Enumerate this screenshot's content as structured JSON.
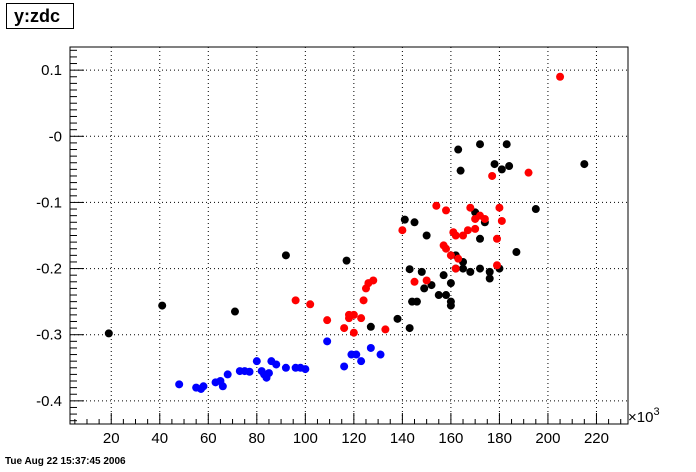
{
  "timestamp": "Tue Aug 22 15:37:45 2006",
  "chart_data": {
    "type": "scatter",
    "title": "y:zdc",
    "xlabel": "",
    "ylabel": "",
    "x_multiplier": "×10^3",
    "x_multiplier_base": "×10",
    "x_multiplier_exp": "3",
    "xlim": [
      3,
      233
    ],
    "ylim": [
      -0.435,
      0.135
    ],
    "x_ticks": [
      20,
      40,
      60,
      80,
      100,
      120,
      140,
      160,
      180,
      200,
      220
    ],
    "x_tick_labels": [
      "20",
      "40",
      "60",
      "80",
      "100",
      "120",
      "140",
      "160",
      "180",
      "200",
      "220"
    ],
    "y_ticks": [
      0.1,
      0,
      -0.1,
      -0.2,
      -0.3,
      -0.4
    ],
    "y_tick_labels": [
      "0.1",
      "-0",
      "-0.1",
      "-0.2",
      "-0.3",
      "-0.4"
    ],
    "grid": true,
    "series": [
      {
        "color": "#000000",
        "points": [
          [
            19,
            -0.298
          ],
          [
            41,
            -0.256
          ],
          [
            71,
            -0.265
          ],
          [
            92,
            -0.18
          ],
          [
            117,
            -0.188
          ],
          [
            127,
            -0.288
          ],
          [
            138,
            -0.276
          ],
          [
            141,
            -0.126
          ],
          [
            143,
            -0.201
          ],
          [
            143,
            -0.29
          ],
          [
            144,
            -0.25
          ],
          [
            145,
            -0.13
          ],
          [
            146,
            -0.25
          ],
          [
            148,
            -0.205
          ],
          [
            149,
            -0.23
          ],
          [
            150,
            -0.15
          ],
          [
            152,
            -0.225
          ],
          [
            155,
            -0.24
          ],
          [
            157,
            -0.21
          ],
          [
            158,
            -0.24
          ],
          [
            160,
            -0.222
          ],
          [
            160,
            -0.25
          ],
          [
            160,
            -0.256
          ],
          [
            162,
            -0.2
          ],
          [
            162,
            -0.18
          ],
          [
            163,
            -0.02
          ],
          [
            164,
            -0.052
          ],
          [
            165,
            -0.19
          ],
          [
            165,
            -0.2
          ],
          [
            168,
            -0.205
          ],
          [
            170,
            -0.115
          ],
          [
            172,
            -0.012
          ],
          [
            172,
            -0.155
          ],
          [
            172,
            -0.2
          ],
          [
            174,
            -0.13
          ],
          [
            176,
            -0.205
          ],
          [
            176,
            -0.215
          ],
          [
            178,
            -0.042
          ],
          [
            180,
            -0.2
          ],
          [
            181,
            -0.05
          ],
          [
            183,
            -0.012
          ],
          [
            184,
            -0.045
          ],
          [
            187,
            -0.175
          ],
          [
            195,
            -0.11
          ],
          [
            215,
            -0.042
          ]
        ]
      },
      {
        "color": "#ff0000",
        "points": [
          [
            96,
            -0.248
          ],
          [
            102,
            -0.254
          ],
          [
            109,
            -0.278
          ],
          [
            116,
            -0.29
          ],
          [
            118,
            -0.275
          ],
          [
            118,
            -0.27
          ],
          [
            120,
            -0.27
          ],
          [
            120,
            -0.297
          ],
          [
            123,
            -0.275
          ],
          [
            124,
            -0.248
          ],
          [
            125,
            -0.23
          ],
          [
            126,
            -0.222
          ],
          [
            128,
            -0.218
          ],
          [
            133,
            -0.292
          ],
          [
            140,
            -0.142
          ],
          [
            145,
            -0.22
          ],
          [
            150,
            -0.218
          ],
          [
            154,
            -0.105
          ],
          [
            157,
            -0.165
          ],
          [
            158,
            -0.112
          ],
          [
            158,
            -0.17
          ],
          [
            160,
            -0.18
          ],
          [
            161,
            -0.145
          ],
          [
            162,
            -0.15
          ],
          [
            162,
            -0.2
          ],
          [
            163,
            -0.185
          ],
          [
            165,
            -0.15
          ],
          [
            167,
            -0.142
          ],
          [
            168,
            -0.108
          ],
          [
            170,
            -0.125
          ],
          [
            170,
            -0.14
          ],
          [
            172,
            -0.12
          ],
          [
            174,
            -0.125
          ],
          [
            177,
            -0.06
          ],
          [
            179,
            -0.155
          ],
          [
            179,
            -0.195
          ],
          [
            180,
            -0.108
          ],
          [
            181,
            -0.128
          ],
          [
            192,
            -0.055
          ],
          [
            205,
            0.09
          ]
        ]
      },
      {
        "color": "#0000ff",
        "points": [
          [
            48,
            -0.375
          ],
          [
            55,
            -0.38
          ],
          [
            57,
            -0.382
          ],
          [
            58,
            -0.378
          ],
          [
            63,
            -0.372
          ],
          [
            65,
            -0.37
          ],
          [
            66,
            -0.378
          ],
          [
            68,
            -0.36
          ],
          [
            73,
            -0.355
          ],
          [
            75,
            -0.355
          ],
          [
            77,
            -0.356
          ],
          [
            80,
            -0.34
          ],
          [
            82,
            -0.355
          ],
          [
            83,
            -0.36
          ],
          [
            84,
            -0.365
          ],
          [
            85,
            -0.358
          ],
          [
            86,
            -0.34
          ],
          [
            88,
            -0.345
          ],
          [
            92,
            -0.35
          ],
          [
            96,
            -0.35
          ],
          [
            98,
            -0.35
          ],
          [
            100,
            -0.352
          ],
          [
            109,
            -0.31
          ],
          [
            116,
            -0.348
          ],
          [
            119,
            -0.33
          ],
          [
            121,
            -0.33
          ],
          [
            123,
            -0.34
          ],
          [
            127,
            -0.32
          ],
          [
            131,
            -0.33
          ]
        ]
      }
    ]
  }
}
